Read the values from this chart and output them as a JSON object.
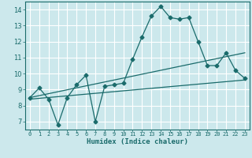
{
  "title": "",
  "xlabel": "Humidex (Indice chaleur)",
  "xlim": [
    -0.5,
    23.5
  ],
  "ylim": [
    6.5,
    14.5
  ],
  "xticks": [
    0,
    1,
    2,
    3,
    4,
    5,
    6,
    7,
    8,
    9,
    10,
    11,
    12,
    13,
    14,
    15,
    16,
    17,
    18,
    19,
    20,
    21,
    22,
    23
  ],
  "yticks": [
    7,
    8,
    9,
    10,
    11,
    12,
    13,
    14
  ],
  "bg_color": "#cce8ec",
  "line_color": "#1a6b6b",
  "grid_color": "#ffffff",
  "line1_x": [
    0,
    1,
    2,
    3,
    4,
    5,
    6,
    7,
    8,
    9,
    10,
    11,
    12,
    13,
    14,
    15,
    16,
    17,
    18,
    19,
    20,
    21,
    22,
    23
  ],
  "line1_y": [
    8.5,
    9.1,
    8.4,
    6.8,
    8.5,
    9.3,
    9.9,
    7.0,
    9.2,
    9.3,
    9.4,
    10.9,
    12.3,
    13.6,
    14.2,
    13.5,
    13.4,
    13.5,
    12.0,
    10.5,
    10.5,
    11.3,
    10.2,
    9.7
  ],
  "line2_x": [
    0,
    23
  ],
  "line2_y": [
    8.4,
    9.6
  ],
  "line3_x": [
    0,
    23
  ],
  "line3_y": [
    8.5,
    11.3
  ],
  "marker": "D",
  "markersize": 2.5,
  "linewidth": 0.9
}
